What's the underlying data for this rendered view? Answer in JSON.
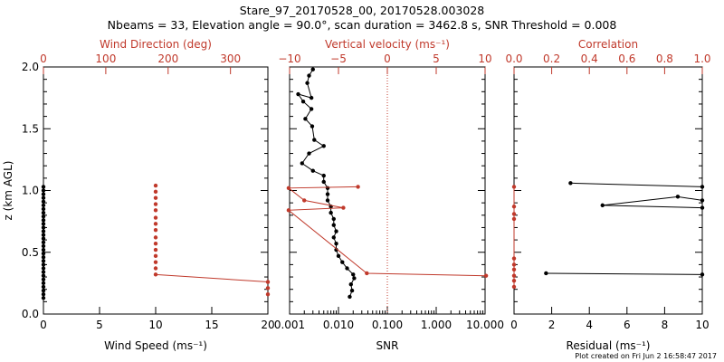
{
  "header": {
    "title": "Stare_97_20170528_00, 20170528.003028",
    "subtitle": "Nbeams = 33, Elevation angle = 90.0°, scan duration = 3462.8 s, SNR Threshold = 0.008"
  },
  "footer": {
    "timestamp": "Plot created on Fri Jun  2 16:58:47 2017"
  },
  "colors": {
    "primary": "#000000",
    "secondary": "#c0392b"
  },
  "chart_data": [
    {
      "type": "scatter",
      "ylabel": "z (km AGL)",
      "ylim": [
        0,
        2
      ],
      "yticks": [
        "0.0",
        "0.5",
        "1.0",
        "1.5",
        "2.0"
      ],
      "xlabel_bottom": "Wind Speed (ms⁻¹)",
      "xlim_bottom": [
        0,
        20
      ],
      "xticks_bottom": [
        "0",
        "5",
        "10",
        "15",
        "20"
      ],
      "xlabel_top": "Wind Direction (deg)",
      "xlim_top": [
        0,
        360
      ],
      "xticks_top": [
        "0",
        "100",
        "200",
        "300"
      ],
      "series": [
        {
          "values": [
            {
              "x": 0,
              "y": 0.13
            },
            {
              "x": 0,
              "y": 0.16
            },
            {
              "x": 0,
              "y": 0.19
            },
            {
              "x": 0,
              "y": 0.22
            },
            {
              "x": 0,
              "y": 0.25
            },
            {
              "x": 0,
              "y": 0.28
            },
            {
              "x": 0,
              "y": 0.31
            },
            {
              "x": 0,
              "y": 0.34
            },
            {
              "x": 0,
              "y": 0.37
            },
            {
              "x": 0,
              "y": 0.4
            },
            {
              "x": 0,
              "y": 0.43
            },
            {
              "x": 0,
              "y": 0.46
            },
            {
              "x": 0,
              "y": 0.49
            },
            {
              "x": 0,
              "y": 0.52
            },
            {
              "x": 0,
              "y": 0.55
            },
            {
              "x": 0,
              "y": 0.58
            },
            {
              "x": 0,
              "y": 0.61
            },
            {
              "x": 0,
              "y": 0.64
            },
            {
              "x": 0,
              "y": 0.67
            },
            {
              "x": 0,
              "y": 0.7
            },
            {
              "x": 0,
              "y": 0.73
            },
            {
              "x": 0,
              "y": 0.76
            },
            {
              "x": 0,
              "y": 0.79
            },
            {
              "x": 0,
              "y": 0.82
            },
            {
              "x": 0,
              "y": 0.85
            },
            {
              "x": 0,
              "y": 0.88
            },
            {
              "x": 0,
              "y": 0.91
            },
            {
              "x": 0,
              "y": 0.94
            },
            {
              "x": 0,
              "y": 0.97
            },
            {
              "x": 0,
              "y": 1.0
            },
            {
              "x": 0,
              "y": 1.03
            }
          ]
        },
        {
          "axis": "top",
          "values": [
            {
              "x": 180,
              "y": 1.04
            },
            {
              "x": 180,
              "y": 0.99
            },
            {
              "x": 180,
              "y": 0.94
            },
            {
              "x": 180,
              "y": 0.89
            },
            {
              "x": 180,
              "y": 0.84
            },
            {
              "x": 180,
              "y": 0.78
            },
            {
              "x": 180,
              "y": 0.73
            },
            {
              "x": 180,
              "y": 0.68
            },
            {
              "x": 180,
              "y": 0.62
            },
            {
              "x": 180,
              "y": 0.57
            },
            {
              "x": 180,
              "y": 0.52
            },
            {
              "x": 180,
              "y": 0.47
            },
            {
              "x": 180,
              "y": 0.42
            },
            {
              "x": 180,
              "y": 0.37
            },
            {
              "x": 180,
              "y": 0.32
            },
            {
              "x": 360,
              "y": 0.26
            },
            {
              "x": 360,
              "y": 0.21
            },
            {
              "x": 360,
              "y": 0.16
            }
          ]
        }
      ]
    },
    {
      "type": "line",
      "ylim": [
        0,
        2
      ],
      "xlabel_bottom": "SNR",
      "xscale_bottom": "log",
      "xlim_bottom": [
        0.001,
        10
      ],
      "xticks_bottom": [
        "0.001",
        "0.010",
        "0.100",
        "1.000",
        "10.000"
      ],
      "xlabel_top": "Vertical velocity (ms⁻¹)",
      "xlim_top": [
        -10,
        10
      ],
      "xticks_top": [
        "−10",
        "−5",
        "0",
        "5",
        "10"
      ],
      "reference_line_top_x": 0,
      "series": [
        {
          "values": [
            {
              "x": 0.017,
              "y": 0.14
            },
            {
              "x": 0.019,
              "y": 0.19
            },
            {
              "x": 0.018,
              "y": 0.24
            },
            {
              "x": 0.021,
              "y": 0.29
            },
            {
              "x": 0.02,
              "y": 0.32
            },
            {
              "x": 0.015,
              "y": 0.37
            },
            {
              "x": 0.012,
              "y": 0.42
            },
            {
              "x": 0.01,
              "y": 0.47
            },
            {
              "x": 0.009,
              "y": 0.52
            },
            {
              "x": 0.009,
              "y": 0.57
            },
            {
              "x": 0.008,
              "y": 0.62
            },
            {
              "x": 0.009,
              "y": 0.67
            },
            {
              "x": 0.008,
              "y": 0.72
            },
            {
              "x": 0.008,
              "y": 0.77
            },
            {
              "x": 0.007,
              "y": 0.82
            },
            {
              "x": 0.007,
              "y": 0.87
            },
            {
              "x": 0.006,
              "y": 0.92
            },
            {
              "x": 0.006,
              "y": 0.97
            },
            {
              "x": 0.006,
              "y": 1.02
            },
            {
              "x": 0.005,
              "y": 1.07
            },
            {
              "x": 0.005,
              "y": 1.12
            },
            {
              "x": 0.003,
              "y": 1.16
            },
            {
              "x": 0.0018,
              "y": 1.22
            },
            {
              "x": 0.0025,
              "y": 1.3
            },
            {
              "x": 0.005,
              "y": 1.36
            },
            {
              "x": 0.0032,
              "y": 1.41
            },
            {
              "x": 0.0029,
              "y": 1.52
            },
            {
              "x": 0.0021,
              "y": 1.58
            },
            {
              "x": 0.0028,
              "y": 1.66
            },
            {
              "x": 0.0019,
              "y": 1.72
            },
            {
              "x": 0.0015,
              "y": 1.78
            },
            {
              "x": 0.0028,
              "y": 1.75
            },
            {
              "x": 0.0023,
              "y": 1.87
            },
            {
              "x": 0.0025,
              "y": 1.93
            },
            {
              "x": 0.003,
              "y": 1.98
            }
          ]
        },
        {
          "axis": "top",
          "values": [
            {
              "x": -3,
              "y": 1.03
            },
            {
              "x": -10.1,
              "y": 1.02
            },
            {
              "x": -8.5,
              "y": 0.92
            },
            {
              "x": -4.5,
              "y": 0.86
            },
            {
              "x": -10.1,
              "y": 0.84
            },
            {
              "x": -2.1,
              "y": 0.33
            },
            {
              "x": 10.1,
              "y": 0.31
            }
          ]
        }
      ]
    },
    {
      "type": "line",
      "ylim": [
        0,
        2
      ],
      "xlabel_bottom": "Residual (ms⁻¹)",
      "xlim_bottom": [
        0,
        10
      ],
      "xticks_bottom": [
        "0",
        "2",
        "4",
        "6",
        "8",
        "10"
      ],
      "xlabel_top": "Correlation",
      "xlim_top": [
        0,
        1
      ],
      "xticks_top": [
        "0.0",
        "0.2",
        "0.4",
        "0.6",
        "0.8",
        "1.0"
      ],
      "series": [
        {
          "values": [
            {
              "x": 3.0,
              "y": 1.06
            },
            {
              "x": 10,
              "y": 1.03
            },
            {
              "x": 8.7,
              "y": 0.95
            },
            {
              "x": 10,
              "y": 0.92
            },
            {
              "x": 4.7,
              "y": 0.88
            },
            {
              "x": 10,
              "y": 0.86
            },
            {
              "x": 1.7,
              "y": 0.33
            },
            {
              "x": 10,
              "y": 0.32
            }
          ],
          "segments": [
            [
              0,
              1
            ],
            [
              2,
              3
            ],
            [
              2,
              4
            ],
            [
              4,
              5
            ],
            [
              6,
              7
            ]
          ]
        },
        {
          "axis": "top",
          "values": [
            {
              "x": 0,
              "y": 1.03
            },
            {
              "x": 0,
              "y": 0.87
            },
            {
              "x": 0,
              "y": 0.81
            },
            {
              "x": 0,
              "y": 0.77
            },
            {
              "x": 0,
              "y": 0.45
            },
            {
              "x": 0,
              "y": 0.4
            },
            {
              "x": 0,
              "y": 0.36
            },
            {
              "x": 0,
              "y": 0.31
            },
            {
              "x": 0,
              "y": 0.27
            },
            {
              "x": 0,
              "y": 0.22
            }
          ]
        }
      ]
    }
  ]
}
